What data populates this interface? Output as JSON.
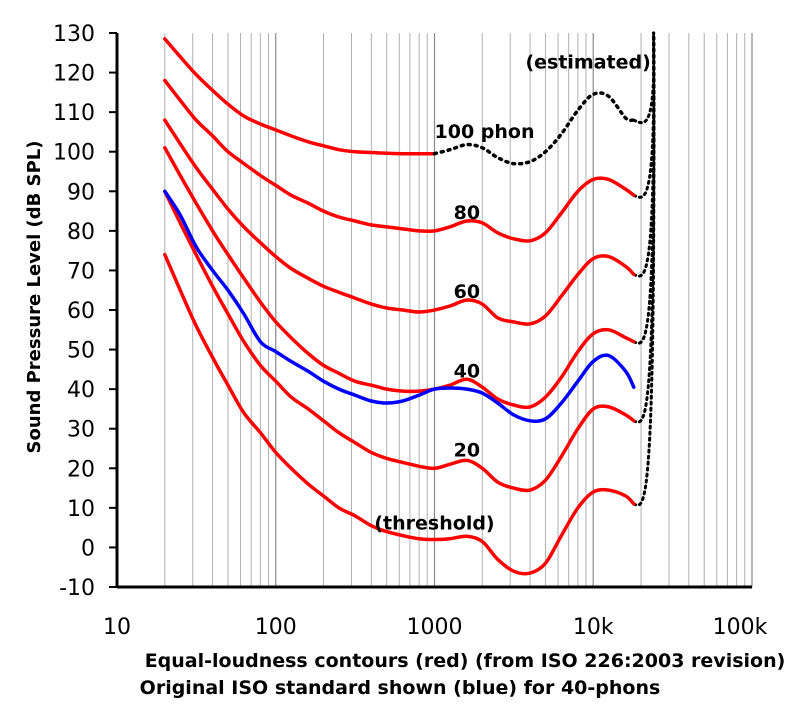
{
  "chart_data": {
    "type": "line",
    "ylabel": "Sound Pressure Level (dB SPL)",
    "xlabel_line1": "Equal-loudness contours (red) (from ISO 226:2003 revision)",
    "xlabel_line2": "Original ISO standard shown (blue) for 40-phons",
    "x_scale": "log",
    "xlim": [
      10,
      100000
    ],
    "ylim": [
      -10,
      130
    ],
    "grid": true,
    "x_ticks": [
      "10",
      "100",
      "1000",
      "10k",
      "100k"
    ],
    "y_ticks": [
      "130",
      "120",
      "110",
      "100",
      "90",
      "80",
      "70",
      "60",
      "50",
      "40",
      "30",
      "20",
      "10",
      "0",
      "-10"
    ],
    "annotations": [
      "(estimated)",
      "100 phon",
      "80",
      "60",
      "40",
      "20",
      "(threshold)"
    ],
    "colors": {
      "iso2003": "#ff0000",
      "original": "#0000ff",
      "estimated": "#000000",
      "grid": "#999999"
    },
    "series": [
      {
        "name": "threshold",
        "color": "#ff0000",
        "x": [
          20,
          25,
          31.5,
          40,
          50,
          63,
          80,
          100,
          125,
          160,
          200,
          250,
          315,
          400,
          500,
          630,
          800,
          1000,
          1250,
          1600,
          2000,
          2500,
          3150,
          4000,
          5000,
          6300,
          8000,
          10000,
          12500,
          16000,
          18000
        ],
        "y": [
          74,
          65,
          56,
          48,
          41,
          34,
          29,
          24,
          20,
          16,
          13,
          10,
          8,
          5.5,
          4,
          3,
          2.2,
          2,
          2.2,
          2.8,
          1.5,
          -3,
          -6,
          -6.5,
          -4,
          3,
          10,
          14,
          14.5,
          13,
          11
        ]
      },
      {
        "name": "20",
        "color": "#ff0000",
        "x": [
          20,
          25,
          31.5,
          40,
          50,
          63,
          80,
          100,
          125,
          160,
          200,
          250,
          315,
          400,
          500,
          630,
          800,
          1000,
          1250,
          1600,
          2000,
          2500,
          3150,
          4000,
          5000,
          6300,
          8000,
          10000,
          12500,
          16000,
          18000
        ],
        "y": [
          90,
          82,
          74,
          66,
          59,
          52,
          46,
          42,
          38,
          35,
          32,
          29,
          26.5,
          24,
          22.5,
          21.5,
          20.5,
          20,
          21,
          22,
          20,
          16.5,
          15,
          14.5,
          17,
          23,
          30,
          35,
          35.5,
          33.5,
          32
        ]
      },
      {
        "name": "40",
        "color": "#ff0000",
        "x": [
          20,
          25,
          31.5,
          40,
          50,
          63,
          80,
          100,
          125,
          160,
          200,
          250,
          315,
          400,
          500,
          630,
          800,
          1000,
          1250,
          1600,
          2000,
          2500,
          3150,
          4000,
          5000,
          6300,
          8000,
          10000,
          12500,
          16000,
          18000
        ],
        "y": [
          101,
          94,
          87,
          80,
          74,
          68,
          62,
          57,
          53,
          49,
          46,
          44,
          42,
          41,
          40,
          39.5,
          39.5,
          40,
          41,
          42.5,
          40.5,
          37.5,
          36,
          35.5,
          38,
          43,
          49.5,
          54,
          55,
          53,
          52
        ]
      },
      {
        "name": "60",
        "color": "#ff0000",
        "x": [
          20,
          25,
          31.5,
          40,
          50,
          63,
          80,
          100,
          125,
          160,
          200,
          250,
          315,
          400,
          500,
          630,
          800,
          1000,
          1250,
          1600,
          2000,
          2500,
          3150,
          4000,
          5000,
          6300,
          8000,
          10000,
          12500,
          16000,
          18000
        ],
        "y": [
          108,
          102,
          96,
          90.5,
          85.5,
          81,
          77,
          73.5,
          70.5,
          68,
          66,
          64.5,
          63,
          61.5,
          60.5,
          60,
          59.5,
          60,
          61,
          62.5,
          61.5,
          58,
          57,
          56.5,
          58.5,
          63.5,
          69,
          73,
          73.5,
          71,
          69
        ]
      },
      {
        "name": "80",
        "color": "#ff0000",
        "x": [
          20,
          25,
          31.5,
          40,
          50,
          63,
          80,
          100,
          125,
          160,
          200,
          250,
          315,
          400,
          500,
          630,
          800,
          1000,
          1250,
          1600,
          2000,
          2500,
          3150,
          4000,
          5000,
          6300,
          8000,
          10000,
          12500,
          16000,
          18000
        ],
        "y": [
          118,
          113,
          108,
          104,
          100,
          97,
          94,
          91.5,
          89,
          87,
          85,
          83.5,
          82.5,
          81.5,
          81,
          80.5,
          80,
          80,
          81,
          82.5,
          82,
          79.5,
          78,
          77.5,
          79.5,
          84.5,
          90,
          93,
          93,
          90.5,
          89
        ]
      },
      {
        "name": "100 phon",
        "color": "#ff0000",
        "x": [
          20,
          25,
          31.5,
          40,
          50,
          63,
          80,
          100,
          125,
          160,
          200,
          250,
          315,
          400,
          500,
          630,
          800,
          1000
        ],
        "y": [
          128.5,
          124,
          119.5,
          115.5,
          112,
          109,
          107,
          105.5,
          104,
          102.5,
          101.5,
          100.5,
          100,
          99.8,
          99.6,
          99.5,
          99.5,
          99.5
        ]
      },
      {
        "name": "100 phon (estimated)",
        "color": "#000000",
        "dashed": true,
        "x": [
          1000,
          1250,
          1600,
          2000,
          2500,
          3150,
          4000,
          5000,
          6300,
          8000,
          10000,
          12500,
          16000,
          18000
        ],
        "y": [
          99.5,
          100.5,
          101.8,
          101,
          98.5,
          97,
          97.5,
          100,
          104.5,
          110.5,
          114.5,
          114,
          108.5,
          108
        ]
      },
      {
        "name": "40 phon (original ISO)",
        "color": "#0000ff",
        "x": [
          20,
          25,
          31.5,
          40,
          50,
          63,
          80,
          100,
          125,
          160,
          200,
          250,
          315,
          400,
          500,
          630,
          800,
          1000,
          1250,
          1600,
          2000,
          2500,
          3150,
          4000,
          5000,
          6300,
          8000,
          10000,
          12500,
          16000,
          18000
        ],
        "y": [
          90,
          84,
          76,
          70,
          65,
          59,
          52,
          49.5,
          47,
          44.5,
          42,
          40,
          38.5,
          37,
          36.5,
          37,
          38.5,
          40,
          40.3,
          40,
          39,
          36.5,
          33.5,
          32,
          32.5,
          36.5,
          42,
          47,
          48.5,
          44.5,
          40.5
        ]
      }
    ],
    "estimated_tails": [
      {
        "from": [
          18000,
          108
        ],
        "to": [
          24000,
          130
        ]
      },
      {
        "from": [
          18000,
          89
        ],
        "to": [
          24000,
          130
        ]
      },
      {
        "from": [
          18000,
          69
        ],
        "to": [
          24000,
          130
        ]
      },
      {
        "from": [
          18000,
          52
        ],
        "to": [
          24000,
          130
        ]
      },
      {
        "from": [
          18000,
          32
        ],
        "to": [
          24000,
          130
        ]
      },
      {
        "from": [
          18000,
          11
        ],
        "to": [
          24000,
          130
        ]
      }
    ]
  }
}
